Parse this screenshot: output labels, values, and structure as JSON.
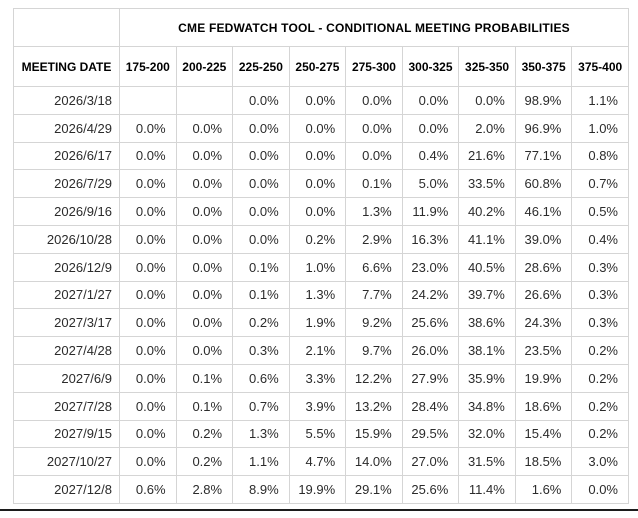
{
  "chart_data": {
    "type": "table",
    "title": "CME FEDWATCH TOOL - CONDITIONAL MEETING PROBABILITIES",
    "row_header": "MEETING DATE",
    "columns": [
      "175-200",
      "200-225",
      "225-250",
      "250-275",
      "275-300",
      "300-325",
      "325-350",
      "350-375",
      "375-400"
    ],
    "highlight_colors": {
      "cyan": "#c9edf8",
      "yellow": "#f6f5d8"
    },
    "rows": [
      {
        "date": "2026/3/18",
        "values": [
          "",
          "",
          "0.0%",
          "0.0%",
          "0.0%",
          "0.0%",
          "0.0%",
          "98.9%",
          "1.1%"
        ],
        "highlights": [
          null,
          null,
          null,
          null,
          null,
          null,
          null,
          "cyan",
          null
        ]
      },
      {
        "date": "2026/4/29",
        "values": [
          "0.0%",
          "0.0%",
          "0.0%",
          "0.0%",
          "0.0%",
          "0.0%",
          "2.0%",
          "96.9%",
          "1.0%"
        ],
        "highlights": [
          null,
          null,
          null,
          null,
          null,
          null,
          null,
          "cyan",
          null
        ]
      },
      {
        "date": "2026/6/17",
        "values": [
          "0.0%",
          "0.0%",
          "0.0%",
          "0.0%",
          "0.0%",
          "0.4%",
          "21.6%",
          "77.1%",
          "0.8%"
        ],
        "highlights": [
          null,
          null,
          null,
          null,
          null,
          null,
          null,
          "cyan",
          null
        ]
      },
      {
        "date": "2026/7/29",
        "values": [
          "0.0%",
          "0.0%",
          "0.0%",
          "0.0%",
          "0.1%",
          "5.0%",
          "33.5%",
          "60.8%",
          "0.7%"
        ],
        "highlights": [
          null,
          null,
          null,
          null,
          null,
          null,
          null,
          "cyan",
          null
        ]
      },
      {
        "date": "2026/9/16",
        "values": [
          "0.0%",
          "0.0%",
          "0.0%",
          "0.0%",
          "1.3%",
          "11.9%",
          "40.2%",
          "46.1%",
          "0.5%"
        ],
        "highlights": [
          null,
          null,
          null,
          null,
          null,
          null,
          null,
          "cyan",
          null
        ]
      },
      {
        "date": "2026/10/28",
        "values": [
          "0.0%",
          "0.0%",
          "0.0%",
          "0.2%",
          "2.9%",
          "16.3%",
          "41.1%",
          "39.0%",
          "0.4%"
        ],
        "highlights": [
          null,
          null,
          null,
          null,
          null,
          null,
          "cyan",
          "yellow",
          null
        ]
      },
      {
        "date": "2026/12/9",
        "values": [
          "0.0%",
          "0.0%",
          "0.1%",
          "1.0%",
          "6.6%",
          "23.0%",
          "40.5%",
          "28.6%",
          "0.3%"
        ],
        "highlights": [
          null,
          null,
          null,
          null,
          null,
          null,
          "cyan",
          "yellow",
          null
        ]
      },
      {
        "date": "2027/1/27",
        "values": [
          "0.0%",
          "0.0%",
          "0.1%",
          "1.3%",
          "7.7%",
          "24.2%",
          "39.7%",
          "26.6%",
          "0.3%"
        ],
        "highlights": [
          null,
          null,
          null,
          null,
          null,
          null,
          "cyan",
          "yellow",
          null
        ]
      },
      {
        "date": "2027/3/17",
        "values": [
          "0.0%",
          "0.0%",
          "0.2%",
          "1.9%",
          "9.2%",
          "25.6%",
          "38.6%",
          "24.3%",
          "0.3%"
        ],
        "highlights": [
          null,
          null,
          null,
          null,
          null,
          null,
          "cyan",
          "yellow",
          null
        ]
      },
      {
        "date": "2027/4/28",
        "values": [
          "0.0%",
          "0.0%",
          "0.3%",
          "2.1%",
          "9.7%",
          "26.0%",
          "38.1%",
          "23.5%",
          "0.2%"
        ],
        "highlights": [
          null,
          null,
          null,
          null,
          null,
          null,
          "cyan",
          "yellow",
          null
        ]
      },
      {
        "date": "2027/6/9",
        "values": [
          "0.0%",
          "0.1%",
          "0.6%",
          "3.3%",
          "12.2%",
          "27.9%",
          "35.9%",
          "19.9%",
          "0.2%"
        ],
        "highlights": [
          null,
          null,
          null,
          null,
          null,
          null,
          "cyan",
          "yellow",
          null
        ]
      },
      {
        "date": "2027/7/28",
        "values": [
          "0.0%",
          "0.1%",
          "0.7%",
          "3.9%",
          "13.2%",
          "28.4%",
          "34.8%",
          "18.6%",
          "0.2%"
        ],
        "highlights": [
          null,
          null,
          null,
          null,
          null,
          null,
          "cyan",
          "yellow",
          null
        ]
      },
      {
        "date": "2027/9/15",
        "values": [
          "0.0%",
          "0.2%",
          "1.3%",
          "5.5%",
          "15.9%",
          "29.5%",
          "32.0%",
          "15.4%",
          "0.2%"
        ],
        "highlights": [
          null,
          null,
          null,
          null,
          null,
          null,
          "cyan",
          "yellow",
          null
        ]
      },
      {
        "date": "2027/10/27",
        "values": [
          "0.0%",
          "0.2%",
          "1.1%",
          "4.7%",
          "14.0%",
          "27.0%",
          "31.5%",
          "18.5%",
          "3.0%"
        ],
        "highlights": [
          null,
          null,
          null,
          null,
          null,
          null,
          "cyan",
          "yellow",
          null
        ]
      },
      {
        "date": "2027/12/8",
        "values": [
          "0.6%",
          "2.8%",
          "8.9%",
          "19.9%",
          "29.1%",
          "25.6%",
          "11.4%",
          "1.6%",
          "0.0%"
        ],
        "highlights": [
          null,
          null,
          null,
          null,
          "cyan",
          "yellow",
          "yellow",
          "yellow",
          null
        ]
      }
    ]
  }
}
